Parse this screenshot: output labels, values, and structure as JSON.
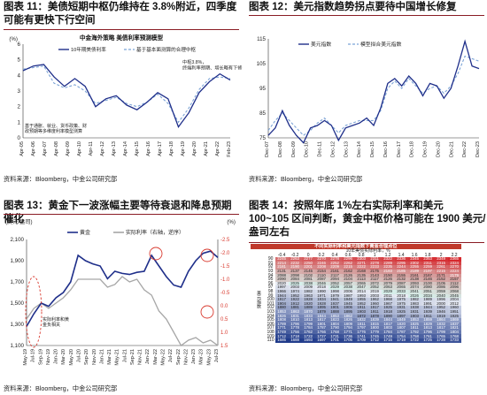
{
  "panels": {
    "p11": {
      "title": "图表 11：美债短期中枢仍维持在 3.8%附近，四季度可能有更快下行空间",
      "source": "资料来源：Bloomberg，中金公司研究部"
    },
    "p12": {
      "title": "图表 12：美元指数趋势拐点要待中国增长修复",
      "source": "资料来源：Bloomberg，中金公司研究部"
    },
    "p13": {
      "title": "图表 13：黄金下一波涨幅主要等待衰退和降息预期催化",
      "source": "资料来源：Bloomberg，中金公司研究部"
    },
    "p14": {
      "title": "图表 14：按照年底 1%左右实际利率和美元 100~105 区间判断，黄金中枢价格可能在 1900 美元/盎司左右",
      "source": "资料来源：Bloomberg，中金公司研究部"
    }
  },
  "colors": {
    "navy": "#1f2f8a",
    "lightblue": "#7ba3d6",
    "gray": "#a6a6a6",
    "red": "#d93b30",
    "rule": "#8a1c24",
    "heat_high": "#d6282d",
    "heat_low": "#1f3a8a"
  },
  "chart_data": [
    {
      "type": "line",
      "id": "p11",
      "inner_title": "中金海外策略 美债利率预测模型",
      "ylabel": "(%)",
      "ylim": [
        0,
        6
      ],
      "yticks": [
        "0",
        "1",
        "2",
        "3",
        "4",
        "5",
        "6"
      ],
      "xticks": [
        "Apr-05",
        "Apr-06",
        "Apr-07",
        "Apr-08",
        "Apr-09",
        "Apr-10",
        "Apr-11",
        "Apr-12",
        "Apr-13",
        "Apr-14",
        "Apr-15",
        "Apr-16",
        "Apr-17",
        "Apr-18",
        "Apr-19",
        "Apr-20",
        "Apr-21",
        "Apr-22",
        "Feb-23"
      ],
      "legend": [
        "10年期美债利率",
        "基于基本面测算的合理中枢"
      ],
      "annotation_right": "中枢3.8%，终端利率预期、增长略有下修",
      "annotation_left": "基于通胀、就业、货币政策、财政预期等多维度利率模型测算",
      "series": [
        {
          "name": "10年期美债利率",
          "values": [
            4.3,
            4.6,
            4.7,
            3.9,
            3.3,
            3.8,
            3.3,
            2.0,
            2.5,
            2.7,
            2.1,
            1.8,
            2.3,
            2.9,
            2.5,
            0.7,
            1.6,
            2.9,
            3.6,
            4.1,
            3.7
          ]
        },
        {
          "name": "基于基本面测算的合理中枢",
          "values": [
            4.4,
            4.5,
            4.6,
            3.5,
            3.2,
            3.4,
            3.0,
            2.2,
            2.4,
            2.6,
            2.2,
            2.0,
            2.3,
            2.8,
            2.2,
            1.0,
            1.9,
            3.1,
            3.8,
            3.9,
            3.8
          ]
        }
      ]
    },
    {
      "type": "line",
      "id": "p12",
      "ylim": [
        75,
        115
      ],
      "yticks": [
        "75",
        "85",
        "95",
        "105",
        "115"
      ],
      "xticks": [
        "Dec-07",
        "Dec-08",
        "Dec-09",
        "Dec-10",
        "Dec-11",
        "Dec-12",
        "Dec-13",
        "Dec-14",
        "Dec-15",
        "Dec-16",
        "Dec-17",
        "Dec-18",
        "Dec-19",
        "Dec-20",
        "Dec-21",
        "Dec-22",
        "Dec-23"
      ],
      "legend": [
        "美元指数",
        "模型拟合美元指数"
      ],
      "series": [
        {
          "name": "美元指数",
          "values": [
            76,
            79,
            86,
            80,
            76,
            73,
            79,
            80,
            82,
            80,
            74,
            79,
            80,
            81,
            83,
            80,
            87,
            97,
            99,
            96,
            100,
            97,
            92,
            97,
            96,
            91,
            95,
            104,
            114,
            104,
            103
          ]
        },
        {
          "name": "模型拟合美元指数",
          "values": [
            78,
            82,
            85,
            82,
            79,
            76,
            78,
            81,
            83,
            80,
            77,
            80,
            81,
            82,
            82,
            82,
            86,
            95,
            98,
            95,
            99,
            96,
            93,
            95,
            96,
            93,
            96,
            101,
            108,
            107,
            106
          ]
        }
      ]
    },
    {
      "type": "line",
      "id": "p13",
      "ylabel_left": "(美元/盎司)",
      "ylabel_right": "(%)",
      "ylim": [
        1100,
        2100
      ],
      "yticks": [
        "1,100",
        "1,300",
        "1,500",
        "1,700",
        "1,900",
        "2,100"
      ],
      "ylim_right": [
        1.5,
        -2.5
      ],
      "yticks_right": [
        "-2.5",
        "-2.0",
        "-1.5",
        "-1.0",
        "-0.5",
        "0.0",
        "0.5",
        "1.0",
        "1.5"
      ],
      "xticks": [
        "May-19",
        "Jul-19",
        "Sep-19",
        "Nov-19",
        "Jan-20",
        "Mar-20",
        "May-20",
        "Jul-20",
        "Sep-20",
        "Nov-20",
        "Jan-21",
        "Mar-21",
        "May-21",
        "Jul-21",
        "Sep-21",
        "Nov-21",
        "Jan-22",
        "Mar-22",
        "May-22",
        "Jul-22",
        "Sep-22",
        "Nov-22",
        "Jan-23",
        "Mar-23",
        "May-23",
        "Jul-23"
      ],
      "legend": [
        "黄金",
        "实际利率（右轴，逆序）"
      ],
      "annotation_left": "实际利率和黄金负相关",
      "series": [
        {
          "name": "黄金",
          "values": [
            1280,
            1400,
            1500,
            1470,
            1550,
            1600,
            1700,
            1950,
            1900,
            1870,
            1850,
            1730,
            1800,
            1780,
            1770,
            1790,
            1800,
            1950,
            1850,
            1750,
            1670,
            1650,
            1800,
            1900,
            1970,
            1990,
            1930
          ]
        },
        {
          "name": "实际利率（右轴，逆序）",
          "values": [
            0.5,
            0.1,
            -0.1,
            0.1,
            -0.1,
            -0.3,
            -0.6,
            -1.0,
            -1.0,
            -1.0,
            -1.0,
            -0.7,
            -0.8,
            -1.1,
            -0.9,
            -1.0,
            -0.6,
            -0.4,
            0.2,
            0.5,
            1.0,
            1.5,
            1.3,
            1.2,
            1.4,
            1.3,
            1.5
          ]
        }
      ]
    },
    {
      "type": "heatmap",
      "id": "p14",
      "table_title": "不同实际利率和美元指数下黄金合理点位",
      "xlabel": "10年美债实际利率，%",
      "ylabel": "美元指数",
      "columns": [
        "-0.4",
        "-0.2",
        "0",
        "0.2",
        "0.4",
        "0.6",
        "0.8",
        "1",
        "1.2",
        "1.4",
        "1.6",
        "1.8",
        "2",
        "2.2"
      ],
      "rows": [
        "90",
        "91",
        "92",
        "93",
        "94",
        "95",
        "96",
        "97",
        "98",
        "99",
        "100",
        "101",
        "102",
        "103",
        "104",
        "105",
        "106",
        "107",
        "108",
        "109",
        "110"
      ],
      "values": [
        [
          2245,
          2263,
          2277,
          2270,
          2278,
          2296,
          2303,
          2311,
          2322,
          2336,
          2345,
          2353,
          2349,
          2365
        ],
        [
          2214,
          2232,
          2250,
          2246,
          2252,
          2262,
          2271,
          2278,
          2289,
          2295,
          2302,
          2311,
          2315,
          2324
        ],
        [
          2181,
          2190,
          2201,
          2208,
          2209,
          2215,
          2222,
          2233,
          2235,
          2244,
          2255,
          2259,
          2261,
          2270
        ],
        [
          2131,
          2137,
          2145,
          2154,
          2161,
          2162,
          2168,
          2175,
          2183,
          2185,
          2189,
          2197,
          2215,
          2224
        ],
        [
          2088,
          2098,
          2102,
          2110,
          2117,
          2126,
          2135,
          2143,
          2150,
          2155,
          2161,
          2167,
          2171,
          2179
        ],
        [
          2090,
          2084,
          2081,
          2087,
          2094,
          2104,
          2113,
          2117,
          2126,
          2132,
          2138,
          2146,
          2152,
          2157
        ],
        [
          2020,
          2025,
          2038,
          2046,
          2052,
          2057,
          2065,
          2072,
          2079,
          2087,
          2093,
          2100,
          2105,
          2112
        ],
        [
          1997,
          2003,
          2009,
          2018,
          2029,
          2038,
          2047,
          2052,
          2063,
          2065,
          2074,
          2080,
          2086,
          2096
        ],
        [
          1966,
          1974,
          1982,
          1990,
          1998,
          2006,
          2014,
          2019,
          2029,
          2033,
          2041,
          2051,
          2059,
          2068
        ],
        [
          1944,
          1952,
          1963,
          1971,
          1979,
          1987,
          1993,
          2003,
          2011,
          2018,
          2026,
          2034,
          2040,
          2045
        ],
        [
          1917,
          1922,
          1928,
          1934,
          1941,
          1949,
          1955,
          1962,
          1968,
          1975,
          1982,
          1989,
          1996,
          2004
        ],
        [
          1904,
          1912,
          1920,
          1928,
          1937,
          1945,
          1952,
          1960,
          1967,
          1975,
          1983,
          1991,
          2000,
          2012
        ],
        [
          1880,
          1881,
          1889,
          1895,
          1901,
          1906,
          1911,
          1917,
          1925,
          1931,
          1938,
          1944,
          1952,
          1960
        ],
        [
          1853,
          1863,
          1870,
          1879,
          1888,
          1895,
          1903,
          1911,
          1918,
          1925,
          1931,
          1939,
          1946,
          1951
        ],
        [
          1826,
          1831,
          1833,
          1844,
          1853,
          1862,
          1872,
          1878,
          1890,
          1897,
          1903,
          1911,
          1919,
          1925
        ],
        [
          1808,
          1810,
          1813,
          1817,
          1823,
          1826,
          1832,
          1839,
          1844,
          1849,
          1853,
          1859,
          1864,
          1869
        ],
        [
          1789,
          1796,
          1799,
          1801,
          1804,
          1809,
          1811,
          1815,
          1817,
          1820,
          1825,
          1829,
          1832,
          1837
        ],
        [
          1771,
          1778,
          1784,
          1787,
          1790,
          1794,
          1797,
          1800,
          1803,
          1807,
          1811,
          1813,
          1817,
          1821
        ],
        [
          1749,
          1756,
          1762,
          1766,
          1768,
          1771,
          1776,
          1779,
          1784,
          1787,
          1792,
          1796,
          1799,
          1804
        ],
        [
          1712,
          1718,
          1722,
          1727,
          1731,
          1736,
          1741,
          1745,
          1749,
          1754,
          1758,
          1761,
          1765,
          1768
        ],
        [
          1685,
          1688,
          1693,
          1697,
          1701,
          1705,
          1709,
          1712,
          1715,
          1719,
          1722,
          1725,
          1728,
          1733
        ]
      ]
    }
  ]
}
